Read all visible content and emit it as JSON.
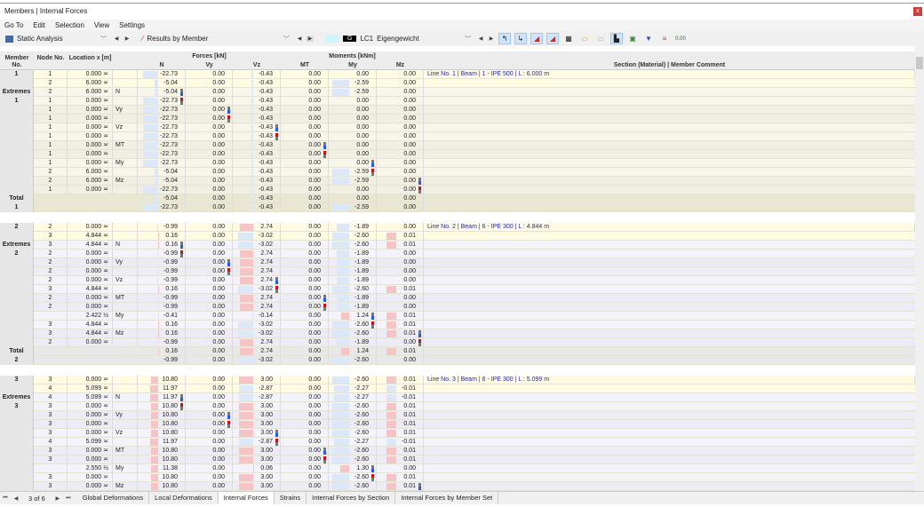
{
  "window": {
    "title": "Members | Internal Forces",
    "close": "x"
  },
  "menu": [
    "Go To",
    "Edit",
    "Selection",
    "View",
    "Settings"
  ],
  "toolbar": {
    "analysis": "Static Analysis",
    "results": "Results by Member",
    "lc_badge": "G",
    "lc": "LC1",
    "lc_name": "Eigengewicht"
  },
  "header": {
    "member": "Member No.",
    "node": "Node No.",
    "location": "Location x [m]",
    "forces": "Forces [kN]",
    "moments": "Moments [kNm]",
    "N": "N",
    "Vy": "Vy",
    "Vz": "Vz",
    "MT": "MT",
    "My": "My",
    "Mz": "Mz",
    "comment": "Section (Material) | Member Comment"
  },
  "labels": {
    "extremes": "Extremes",
    "total": "Total"
  },
  "members": [
    {
      "no": "1",
      "comment": "Line No. 1 | Beam | 1 - IPE 500 | L : 6.000 m",
      "main": [
        [
          "1",
          "0.000 ≍",
          "",
          "-22.73",
          "0.00",
          "-0.43",
          "0.00",
          "0.00",
          "0.00"
        ],
        [
          "2",
          "6.000 ≍",
          "",
          "-5.04",
          "0.00",
          "-0.43",
          "0.00",
          "-2.59",
          "0.00"
        ]
      ],
      "extremes": [
        [
          "2",
          "6.000 ≍",
          "N",
          "-5.04",
          "0.00",
          "-0.43",
          "0.00",
          "-2.59",
          "0.00",
          0,
          "max"
        ],
        [
          "1",
          "0.000 ≍",
          "",
          "-22.73",
          "0.00",
          "-0.43",
          "0.00",
          "0.00",
          "0.00",
          0,
          "min"
        ],
        [
          "1",
          "0.000 ≍",
          "Vy",
          "-22.73",
          "0.00",
          "-0.43",
          "0.00",
          "0.00",
          "0.00",
          1,
          "max"
        ],
        [
          "1",
          "0.000 ≍",
          "",
          "-22.73",
          "0.00",
          "-0.43",
          "0.00",
          "0.00",
          "0.00",
          1,
          "min"
        ],
        [
          "1",
          "0.000 ≍",
          "Vz",
          "-22.73",
          "0.00",
          "-0.43",
          "0.00",
          "0.00",
          "0.00",
          2,
          "max"
        ],
        [
          "1",
          "0.000 ≍",
          "",
          "-22.73",
          "0.00",
          "-0.43",
          "0.00",
          "0.00",
          "0.00",
          2,
          "min"
        ],
        [
          "1",
          "0.000 ≍",
          "MT",
          "-22.73",
          "0.00",
          "-0.43",
          "0.00",
          "0.00",
          "0.00",
          3,
          "max"
        ],
        [
          "1",
          "0.000 ≍",
          "",
          "-22.73",
          "0.00",
          "-0.43",
          "0.00",
          "0.00",
          "0.00",
          3,
          "min"
        ],
        [
          "1",
          "0.000 ≍",
          "My",
          "-22.73",
          "0.00",
          "-0.43",
          "0.00",
          "0.00",
          "0.00",
          4,
          "max"
        ],
        [
          "2",
          "6.000 ≍",
          "",
          "-5.04",
          "0.00",
          "-0.43",
          "0.00",
          "-2.59",
          "0.00",
          4,
          "min"
        ],
        [
          "2",
          "6.000 ≍",
          "Mz",
          "-5.04",
          "0.00",
          "-0.43",
          "0.00",
          "-2.59",
          "0.00",
          5,
          "max"
        ],
        [
          "1",
          "0.000 ≍",
          "",
          "-22.73",
          "0.00",
          "-0.43",
          "0.00",
          "0.00",
          "0.00",
          5,
          "min"
        ]
      ],
      "total": [
        [
          "-5.04",
          "0.00",
          "-0.43",
          "0.00",
          "0.00",
          "0.00"
        ],
        [
          "-22.73",
          "0.00",
          "-0.43",
          "0.00",
          "-2.59",
          "0.00"
        ]
      ]
    },
    {
      "no": "2",
      "comment": "Line No. 2 | Beam | 6 - IPE 300 | L : 4.844 m",
      "main": [
        [
          "2",
          "0.000 ≍",
          "",
          "-0.99",
          "0.00",
          "2.74",
          "0.00",
          "-1.89",
          "0.00"
        ],
        [
          "3",
          "4.844 ≍",
          "",
          "0.16",
          "0.00",
          "-3.02",
          "0.00",
          "-2.60",
          "0.01"
        ]
      ],
      "extremes": [
        [
          "3",
          "4.844 ≍",
          "N",
          "0.16",
          "0.00",
          "-3.02",
          "0.00",
          "-2.60",
          "0.01",
          0,
          "max"
        ],
        [
          "2",
          "0.000 ≍",
          "",
          "-0.99",
          "0.00",
          "2.74",
          "0.00",
          "-1.89",
          "0.00",
          0,
          "min"
        ],
        [
          "2",
          "0.000 ≍",
          "Vy",
          "-0.99",
          "0.00",
          "2.74",
          "0.00",
          "-1.89",
          "0.00",
          1,
          "max"
        ],
        [
          "2",
          "0.000 ≍",
          "",
          "-0.99",
          "0.00",
          "2.74",
          "0.00",
          "-1.89",
          "0.00",
          1,
          "min"
        ],
        [
          "2",
          "0.000 ≍",
          "Vz",
          "-0.99",
          "0.00",
          "2.74",
          "0.00",
          "-1.89",
          "0.00",
          2,
          "max"
        ],
        [
          "3",
          "4.844 ≍",
          "",
          "0.16",
          "0.00",
          "-3.02",
          "0.00",
          "-2.60",
          "0.01",
          2,
          "min"
        ],
        [
          "2",
          "0.000 ≍",
          "MT",
          "-0.99",
          "0.00",
          "2.74",
          "0.00",
          "-1.89",
          "0.00",
          3,
          "max"
        ],
        [
          "2",
          "0.000 ≍",
          "",
          "-0.99",
          "0.00",
          "2.74",
          "0.00",
          "-1.89",
          "0.00",
          3,
          "min"
        ],
        [
          "",
          "2.422 ½",
          "My",
          "-0.41",
          "0.00",
          "-0.14",
          "0.00",
          "1.24",
          "0.01",
          4,
          "max"
        ],
        [
          "3",
          "4.844 ≍",
          "",
          "0.16",
          "0.00",
          "-3.02",
          "0.00",
          "-2.60",
          "0.01",
          4,
          "min"
        ],
        [
          "3",
          "4.844 ≍",
          "Mz",
          "0.16",
          "0.00",
          "-3.02",
          "0.00",
          "-2.60",
          "0.01",
          5,
          "max"
        ],
        [
          "2",
          "0.000 ≍",
          "",
          "-0.99",
          "0.00",
          "2.74",
          "0.00",
          "-1.89",
          "0.00",
          5,
          "min"
        ]
      ],
      "total": [
        [
          "0.16",
          "0.00",
          "2.74",
          "0.00",
          "1.24",
          "0.01"
        ],
        [
          "-0.99",
          "0.00",
          "-3.02",
          "0.00",
          "-2.60",
          "0.00"
        ]
      ]
    },
    {
      "no": "3",
      "comment": "Line No. 3 | Beam | 6 - IPE 300 | L : 5.099 m",
      "main": [
        [
          "3",
          "0.000 ≍",
          "",
          "10.80",
          "0.00",
          "3.00",
          "0.00",
          "-2.60",
          "0.01"
        ],
        [
          "4",
          "5.099 ≍",
          "",
          "11.97",
          "0.00",
          "-2.87",
          "0.00",
          "-2.27",
          "-0.01"
        ]
      ],
      "extremes": [
        [
          "4",
          "5.099 ≍",
          "N",
          "11.97",
          "0.00",
          "-2.87",
          "0.00",
          "-2.27",
          "-0.01",
          0,
          "max"
        ],
        [
          "3",
          "0.000 ≍",
          "",
          "10.80",
          "0.00",
          "3.00",
          "0.00",
          "-2.60",
          "0.01",
          0,
          "min"
        ],
        [
          "3",
          "0.000 ≍",
          "Vy",
          "10.80",
          "0.00",
          "3.00",
          "0.00",
          "-2.60",
          "0.01",
          1,
          "max"
        ],
        [
          "3",
          "0.000 ≍",
          "",
          "10.80",
          "0.00",
          "3.00",
          "0.00",
          "-2.60",
          "0.01",
          1,
          "min"
        ],
        [
          "3",
          "0.000 ≍",
          "Vz",
          "10.80",
          "0.00",
          "3.00",
          "0.00",
          "-2.60",
          "0.01",
          2,
          "max"
        ],
        [
          "4",
          "5.099 ≍",
          "",
          "11.97",
          "0.00",
          "-2.87",
          "0.00",
          "-2.27",
          "-0.01",
          2,
          "min"
        ],
        [
          "3",
          "0.000 ≍",
          "MT",
          "10.80",
          "0.00",
          "3.00",
          "0.00",
          "-2.60",
          "0.01",
          3,
          "max"
        ],
        [
          "3",
          "0.000 ≍",
          "",
          "10.80",
          "0.00",
          "3.00",
          "0.00",
          "-2.60",
          "0.01",
          3,
          "min"
        ],
        [
          "",
          "2.550 ½",
          "My",
          "11.38",
          "0.00",
          "0.06",
          "0.00",
          "1.30",
          "0.00",
          4,
          "max"
        ],
        [
          "3",
          "0.000 ≍",
          "",
          "10.80",
          "0.00",
          "3.00",
          "0.00",
          "-2.60",
          "0.01",
          4,
          "min"
        ],
        [
          "3",
          "0.000 ≍",
          "Mz",
          "10.80",
          "0.00",
          "3.00",
          "0.00",
          "-2.60",
          "0.01",
          5,
          "max"
        ]
      ],
      "total": []
    }
  ],
  "pager": {
    "first": "⏮",
    "prev": "◀",
    "text": "3 of 6",
    "next": "▶",
    "last": "⏭"
  },
  "tabs": [
    "Global Deformations",
    "Local Deformations",
    "Internal Forces",
    "Strains",
    "Internal Forces by Section",
    "Internal Forces by Member Set"
  ],
  "active_tab": "Internal Forces",
  "colors": {
    "main_row": "#fffbe3",
    "ext1_a": "#f8f6ea",
    "ext1_b": "#f1eee2",
    "ext_a": "#f4f3fb",
    "ext_b": "#ecebf6",
    "total1": "#e9e7cf",
    "total": "#e8e8e8",
    "max": "#2a5ae0",
    "min": "#c01818",
    "comment": "#2a2a9a"
  }
}
